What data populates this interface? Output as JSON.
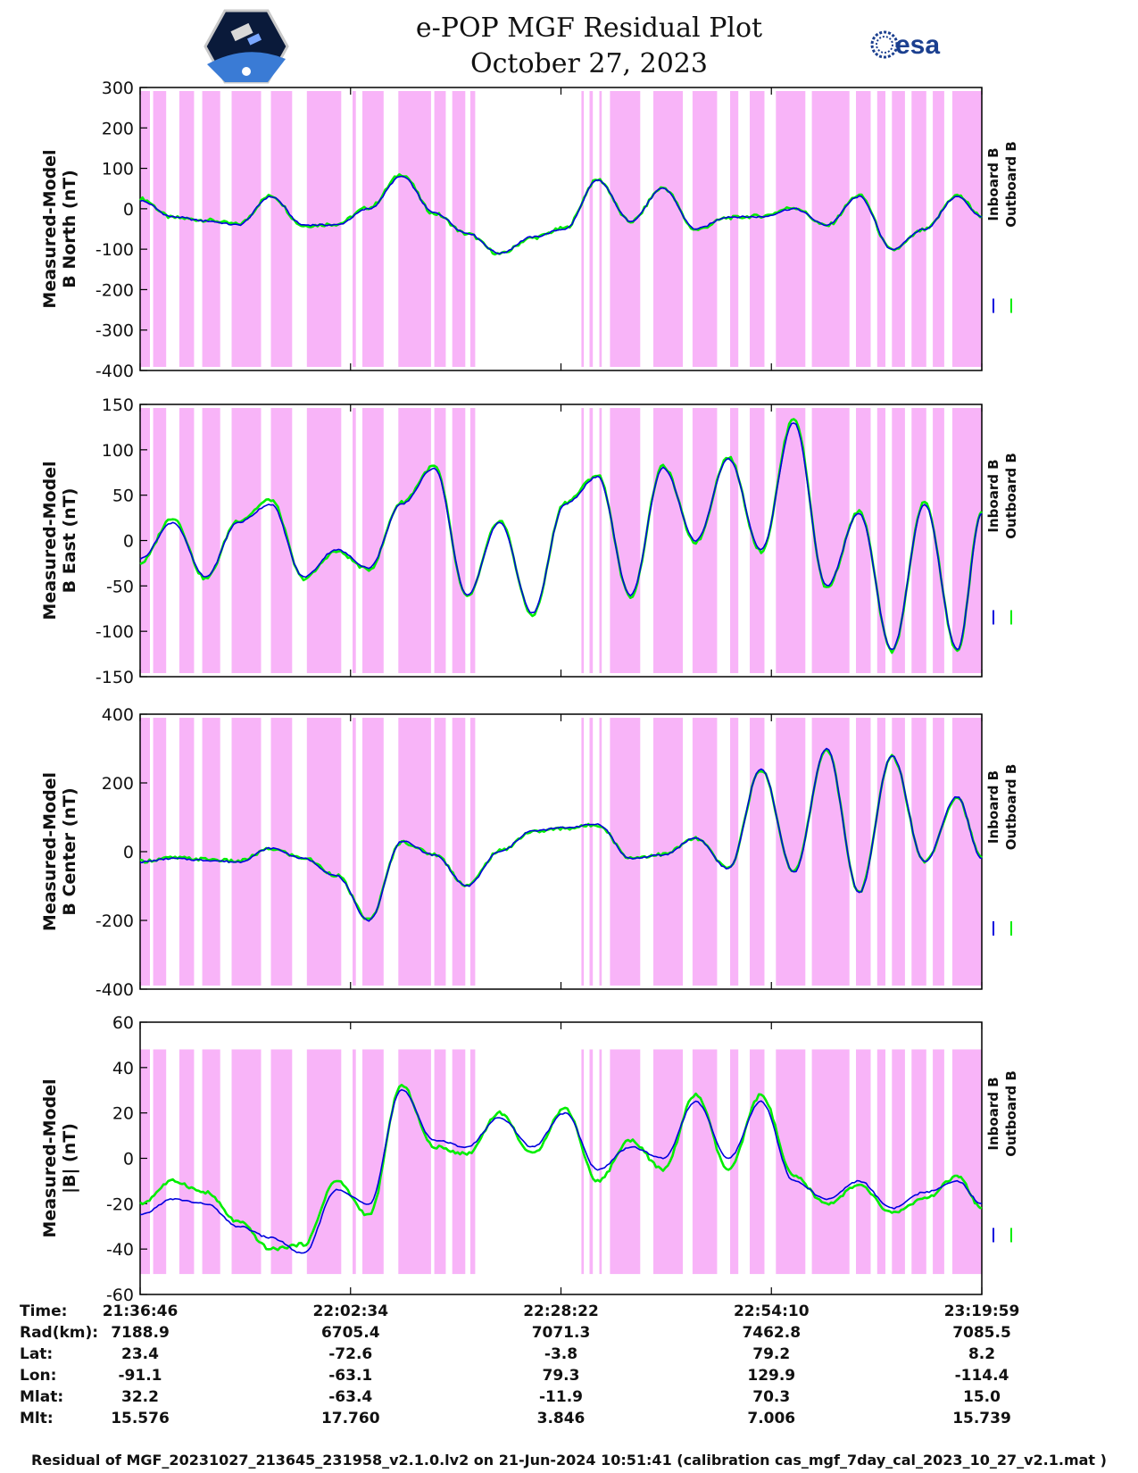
{
  "header": {
    "title": "e-POP MGF Residual Plot",
    "date": "October 27, 2023",
    "left_logo": "cassiope-mission-logo",
    "right_logo": {
      "icon": "esa-logo",
      "text": "esa"
    }
  },
  "colors": {
    "inboard": "#0000dd",
    "outboard": "#00ee00",
    "shade": "#f8b4f8"
  },
  "chart_data": [
    {
      "type": "line",
      "ylabel": [
        "Measured-Model",
        "B North (nT)"
      ],
      "ylim": [
        -400,
        300
      ],
      "yticks": [
        "300",
        "200",
        "100",
        "0",
        "-100",
        "-200",
        "-300",
        "-400"
      ],
      "legend": [
        "Inboard B",
        "Outboard B"
      ],
      "x_minutes": [
        0,
        4,
        8,
        12,
        16,
        20,
        24,
        28,
        32,
        36,
        40,
        44,
        48,
        52,
        56,
        60,
        64,
        68,
        72,
        76,
        80,
        84,
        88,
        92,
        96,
        100,
        103
      ],
      "series": [
        {
          "name": "Inboard B",
          "values": [
            20,
            -20,
            -30,
            -40,
            30,
            -40,
            -40,
            0,
            80,
            -10,
            -60,
            -110,
            -70,
            -50,
            70,
            -30,
            50,
            -50,
            -20,
            -20,
            0,
            -40,
            30,
            -100,
            -50,
            30,
            -20
          ]
        },
        {
          "name": "Outboard B",
          "values": [
            25,
            -22,
            -28,
            -38,
            32,
            -42,
            -38,
            3,
            85,
            -12,
            -62,
            -112,
            -72,
            -48,
            72,
            -32,
            52,
            -52,
            -22,
            -18,
            3,
            -42,
            33,
            -102,
            -52,
            33,
            -18
          ]
        }
      ]
    },
    {
      "type": "line",
      "ylabel": [
        "Measured-Model",
        "B East (nT)"
      ],
      "ylim": [
        -150,
        150
      ],
      "yticks": [
        "150",
        "100",
        "50",
        "0",
        "-50",
        "-100",
        "-150"
      ],
      "legend": [
        "Inboard B",
        "Outboard B"
      ],
      "x_minutes": [
        0,
        4,
        8,
        12,
        16,
        20,
        24,
        28,
        32,
        36,
        40,
        44,
        48,
        52,
        56,
        60,
        64,
        68,
        72,
        76,
        80,
        84,
        88,
        92,
        96,
        100,
        103
      ],
      "series": [
        {
          "name": "Inboard B",
          "values": [
            -20,
            20,
            -40,
            20,
            40,
            -40,
            -10,
            -30,
            40,
            80,
            -60,
            20,
            -80,
            40,
            70,
            -60,
            80,
            0,
            90,
            -10,
            130,
            -50,
            30,
            -120,
            40,
            -120,
            30
          ]
        },
        {
          "name": "Outboard B",
          "values": [
            -25,
            25,
            -42,
            22,
            45,
            -42,
            -12,
            -32,
            42,
            82,
            -62,
            22,
            -82,
            42,
            72,
            -62,
            82,
            -2,
            92,
            -12,
            135,
            -52,
            32,
            -122,
            42,
            -122,
            32
          ]
        }
      ]
    },
    {
      "type": "line",
      "ylabel": [
        "Measured-Model",
        "B Center (nT)"
      ],
      "ylim": [
        -400,
        400
      ],
      "yticks": [
        "400",
        "200",
        "0",
        "-200",
        "-400"
      ],
      "legend": [
        "Inboard B",
        "Outboard B"
      ],
      "x_minutes": [
        0,
        4,
        8,
        12,
        16,
        20,
        24,
        28,
        32,
        36,
        40,
        44,
        48,
        52,
        56,
        60,
        64,
        68,
        72,
        76,
        80,
        84,
        88,
        92,
        96,
        100,
        103
      ],
      "series": [
        {
          "name": "Inboard B",
          "values": [
            -30,
            -20,
            -25,
            -30,
            10,
            -20,
            -70,
            -200,
            30,
            -10,
            -100,
            0,
            60,
            70,
            80,
            -20,
            -10,
            40,
            -50,
            240,
            -60,
            300,
            -120,
            280,
            -30,
            160,
            -20
          ]
        },
        {
          "name": "Outboard B",
          "values": [
            -28,
            -18,
            -22,
            -28,
            8,
            -18,
            -68,
            -198,
            28,
            -8,
            -98,
            2,
            58,
            68,
            78,
            -18,
            -8,
            38,
            -48,
            238,
            -58,
            298,
            -118,
            278,
            -28,
            158,
            -18
          ]
        }
      ]
    },
    {
      "type": "line",
      "ylabel": [
        "Measured-Model",
        "|B| (nT)"
      ],
      "ylim": [
        -60,
        60
      ],
      "yticks": [
        "60",
        "40",
        "20",
        "0",
        "-20",
        "-40",
        "-60"
      ],
      "legend": [
        "Inboard B",
        "Outboard B"
      ],
      "x_minutes": [
        0,
        4,
        8,
        12,
        16,
        20,
        24,
        28,
        32,
        36,
        40,
        44,
        48,
        52,
        56,
        60,
        64,
        68,
        72,
        76,
        80,
        84,
        88,
        92,
        96,
        100,
        103
      ],
      "series": [
        {
          "name": "Inboard B",
          "values": [
            -25,
            -18,
            -20,
            -30,
            -35,
            -42,
            -14,
            -20,
            30,
            8,
            5,
            18,
            5,
            20,
            -5,
            5,
            0,
            25,
            0,
            25,
            -10,
            -18,
            -10,
            -22,
            -15,
            -10,
            -20
          ]
        },
        {
          "name": "Outboard B",
          "values": [
            -20,
            -10,
            -15,
            -28,
            -40,
            -38,
            -10,
            -25,
            32,
            5,
            2,
            20,
            2,
            22,
            -10,
            8,
            -5,
            28,
            -5,
            28,
            -8,
            -20,
            -12,
            -24,
            -18,
            -8,
            -22
          ]
        }
      ]
    }
  ],
  "ephemeris": {
    "labels": [
      "Time:",
      "Rad(km):",
      "Lat:",
      "Lon:",
      "Mlat:",
      "Mlt:"
    ],
    "columns": [
      [
        "21:36:46",
        "7188.9",
        "23.4",
        "-91.1",
        "32.2",
        "15.576"
      ],
      [
        "22:02:34",
        "6705.4",
        "-72.6",
        "-63.1",
        "-63.4",
        "17.760"
      ],
      [
        "22:28:22",
        "7071.3",
        "-3.8",
        "79.3",
        "-11.9",
        "3.846"
      ],
      [
        "22:54:10",
        "7462.8",
        "79.2",
        "129.9",
        "70.3",
        "7.006"
      ],
      [
        "23:19:59",
        "7085.5",
        "8.2",
        "-114.4",
        "15.0",
        "15.739"
      ]
    ]
  },
  "footer": "Residual of MGF_20231027_213645_231958_v2.1.0.lv2 on 21-Jun-2024 10:51:41 (calibration cas_mgf_7day_cal_2023_10_27_v2.1.mat )"
}
